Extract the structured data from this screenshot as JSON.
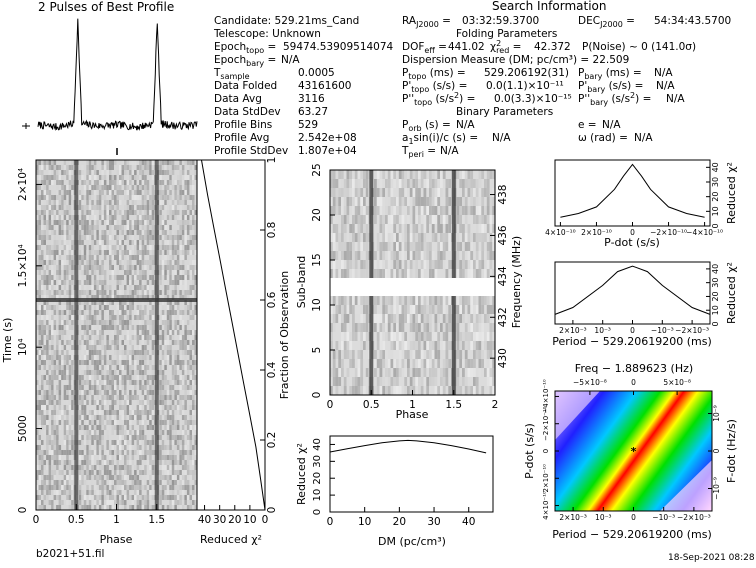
{
  "title": "2 Pulses of Best Profile",
  "search_info": {
    "heading": "Search Information",
    "candidate": "Candidate:  529.21ms_Cand",
    "telescope": "Telescope:  Unknown",
    "epoch_topo": "59474.53909514074",
    "epoch_bary": "N/A",
    "t_sample": "0.0005",
    "data_folded": "43161600",
    "data_avg": "3116",
    "data_stddev": "63.27",
    "profile_bins": "529",
    "profile_avg": "2.542e+08",
    "profile_stddev": "1.807e+04",
    "ra": "03:32:59.3700",
    "dec": "54:34:43.5700",
    "folding_heading": "Folding Parameters",
    "dof_eff": "441.02",
    "chi2_red": "42.372",
    "p_noise": "P(Noise) ~ 0   (141.0σ)",
    "dm": "Dispersion Measure (DM; pc/cm³) = 22.509",
    "p_topo": "529.206192(31)",
    "p_bary": "N/A",
    "pdot_topo": "0.0(1.1)×10⁻¹¹",
    "pdot_bary": "N/A",
    "pddot_topo": "0.0(3.3)×10⁻¹⁵",
    "pddot_bary": "N/A",
    "binary_heading": "Binary Parameters",
    "p_orb": "N/A",
    "a_sini": "N/A",
    "t_peri": "N/A",
    "ecc": "N/A",
    "omega": "N/A"
  },
  "footer": {
    "filename": "b2021+51.fil",
    "date": "18-Sep-2021 08:28"
  },
  "chart_data": [
    {
      "type": "line",
      "name": "profile",
      "title": "2 Pulses of Best Profile",
      "x": [
        0,
        0.25,
        0.45,
        0.5,
        0.55,
        0.75,
        1.0,
        1.25,
        1.45,
        1.5,
        1.55,
        1.75,
        2.0
      ],
      "y": [
        0.02,
        0.0,
        0.03,
        1.0,
        0.03,
        0.01,
        0.02,
        0.0,
        0.03,
        1.0,
        0.03,
        0.01,
        0.02
      ],
      "xlim": [
        0,
        2
      ]
    },
    {
      "type": "heatmap",
      "name": "time-phase",
      "xlabel": "Phase",
      "ylabel": "Time (s)",
      "xticks": [
        "0",
        "0.5",
        "1",
        "1.5"
      ],
      "yticks": [
        "0",
        "5000",
        "10⁴",
        "1.5×10⁴",
        "2×10⁴"
      ],
      "xlim": [
        0,
        2
      ],
      "ylim": [
        0,
        21500
      ],
      "pulse_phases": [
        0.5,
        1.5
      ]
    },
    {
      "type": "line",
      "name": "reduced-chi2-vs-time",
      "xlabel": "Reduced χ²",
      "ylabel": "Fraction of Observation",
      "xticks": [
        "40",
        "30",
        "20",
        "10",
        "0"
      ],
      "yticks": [
        "0",
        "0.2",
        "0.4",
        "0.6",
        "0.8",
        "1"
      ],
      "x": [
        0,
        3,
        6,
        10,
        14,
        18,
        22,
        26,
        30,
        34,
        38,
        42
      ],
      "y": [
        0,
        0.09,
        0.18,
        0.27,
        0.36,
        0.45,
        0.54,
        0.63,
        0.72,
        0.81,
        0.9,
        1.0
      ],
      "xlim": [
        45,
        0
      ],
      "ylim": [
        0,
        1
      ]
    },
    {
      "type": "heatmap",
      "name": "subband-phase",
      "xlabel": "Phase",
      "ylabel": "Sub-band",
      "right_label": "Frequency (MHz)",
      "xticks": [
        "0",
        "0.5",
        "1",
        "1.5",
        "2"
      ],
      "yticks": [
        "0",
        "5",
        "10",
        "15",
        "20",
        "25"
      ],
      "right_ticks": [
        "430",
        "432",
        "434",
        "436",
        "438"
      ],
      "xlim": [
        0,
        2
      ],
      "ylim": [
        0,
        25
      ],
      "masked_subbands": [
        11,
        13
      ]
    },
    {
      "type": "line",
      "name": "chi2-vs-dm",
      "xlabel": "DM (pc/cm³)",
      "ylabel": "Reduced χ²",
      "xticks": [
        "0",
        "10",
        "20",
        "30",
        "40"
      ],
      "yticks": [
        "0",
        "10",
        "20",
        "30",
        "40"
      ],
      "x": [
        0,
        5,
        10,
        15,
        20,
        22.5,
        25,
        30,
        35,
        40,
        45
      ],
      "y": [
        35.5,
        37.5,
        39.3,
        41.0,
        42.1,
        42.4,
        42.1,
        41.0,
        39.3,
        37.3,
        35.0
      ],
      "xlim": [
        0,
        47
      ],
      "ylim": [
        0,
        45
      ]
    },
    {
      "type": "line",
      "name": "chi2-vs-pdot",
      "xlabel": "P-dot (s/s)",
      "ylabel": "Reduced χ²",
      "xticks": [
        "4×10⁻¹⁰",
        "2×10⁻¹⁰",
        "0",
        "−2×10⁻¹⁰",
        "−4×10⁻¹⁰"
      ],
      "yticks": [
        "0",
        "10",
        "20",
        "30",
        "40"
      ],
      "x": [
        -4e-10,
        -3e-10,
        -2e-10,
        -1e-10,
        -5e-11,
        0,
        5e-11,
        1e-10,
        2e-10,
        3e-10,
        4e-10
      ],
      "y": [
        6,
        8.5,
        13,
        25,
        34,
        42,
        34,
        25,
        13,
        8.5,
        6
      ],
      "ylim": [
        0,
        45
      ]
    },
    {
      "type": "line",
      "name": "chi2-vs-period",
      "xlabel": "Period − 529.20619200 (ms)",
      "ylabel": "Reduced χ²",
      "xticks": [
        "2×10⁻³",
        "10⁻³",
        "0",
        "−10⁻³",
        "−2×10⁻³"
      ],
      "yticks": [
        "0",
        "10",
        "20",
        "30",
        "40"
      ],
      "x": [
        -0.0026,
        -0.002,
        -0.001,
        -0.0005,
        0,
        0.0005,
        0.001,
        0.002,
        0.0026
      ],
      "y": [
        7,
        12,
        28,
        38,
        42,
        38,
        28,
        12,
        7
      ],
      "ylim": [
        0,
        45
      ]
    },
    {
      "type": "heatmap",
      "name": "p-pdot-plane",
      "top_label": "Freq − 1.889623 (Hz)",
      "xlabel": "Period − 529.20619200 (ms)",
      "ylabel": "P-dot (s/s)",
      "right_label": "F-dot (Hz/s)",
      "top_ticks": [
        "−5×10⁻⁸",
        "0",
        "5×10⁻⁸"
      ],
      "xticks": [
        "2×10⁻³",
        "10⁻³",
        "0",
        "−10⁻³",
        "−2×10⁻³"
      ],
      "yticks": [
        "4×10⁻¹⁰",
        "2×10⁻¹⁰",
        "0",
        "−2×10⁻¹⁰",
        "−4×10⁻¹⁰"
      ],
      "right_ticks": [
        "10⁻⁹",
        "0",
        "−10⁻⁹"
      ],
      "best": {
        "period_offset_ms": 0,
        "pdot": 0
      }
    }
  ]
}
